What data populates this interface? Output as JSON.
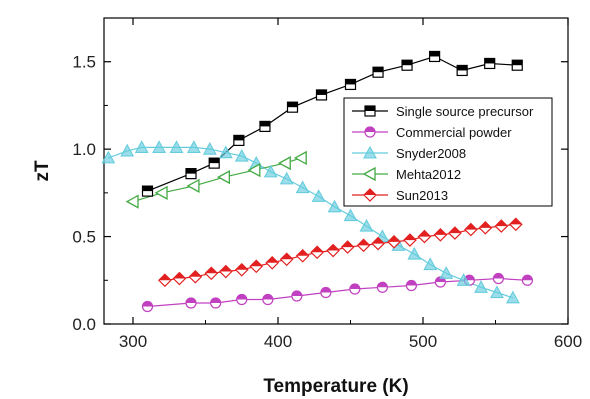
{
  "chart_data": {
    "type": "line",
    "xlabel": "Temperature (K)",
    "ylabel": "zT",
    "xlim": [
      280,
      600
    ],
    "ylim": [
      0,
      1.75
    ],
    "xticks": [
      300,
      400,
      500,
      600
    ],
    "yticks": [
      0.0,
      0.5,
      1.0,
      1.5
    ],
    "ytick_labels": [
      "0.0",
      "0.5",
      "1.0",
      "1.5"
    ],
    "legend_position": "right",
    "series": [
      {
        "name": "Single source precursor",
        "color": "#000000",
        "marker": "square-half",
        "x": [
          310,
          340,
          356,
          373,
          391,
          410,
          430,
          450,
          469,
          489,
          508,
          527,
          546,
          565
        ],
        "y": [
          0.76,
          0.86,
          0.92,
          1.05,
          1.13,
          1.24,
          1.31,
          1.37,
          1.44,
          1.48,
          1.53,
          1.45,
          1.49,
          1.48
        ]
      },
      {
        "name": "Commercial powder",
        "color": "#c040c0",
        "marker": "circle-half",
        "x": [
          310,
          340,
          357,
          375,
          393,
          413,
          433,
          453,
          472,
          492,
          512,
          532,
          552,
          572
        ],
        "y": [
          0.1,
          0.12,
          0.12,
          0.14,
          0.14,
          0.16,
          0.18,
          0.2,
          0.21,
          0.22,
          0.24,
          0.25,
          0.26,
          0.25
        ]
      },
      {
        "name": "Snyder2008",
        "color": "#66ccdd",
        "marker": "triangle-up",
        "x": [
          283,
          296,
          306,
          318,
          330,
          342,
          353,
          364,
          375,
          385,
          395,
          406,
          417,
          428,
          439,
          450,
          461,
          472,
          483,
          494,
          505,
          516,
          528,
          540,
          551,
          562
        ],
        "y": [
          0.95,
          0.99,
          1.01,
          1.01,
          1.01,
          1.01,
          1.0,
          0.98,
          0.96,
          0.92,
          0.87,
          0.83,
          0.78,
          0.73,
          0.67,
          0.62,
          0.56,
          0.5,
          0.45,
          0.4,
          0.34,
          0.29,
          0.25,
          0.21,
          0.18,
          0.15
        ]
      },
      {
        "name": "Mehta2012",
        "color": "#44aa44",
        "marker": "triangle-left",
        "x": [
          300,
          320,
          342,
          363,
          384,
          405,
          416
        ],
        "y": [
          0.7,
          0.75,
          0.79,
          0.84,
          0.88,
          0.92,
          0.95
        ]
      },
      {
        "name": "Sun2013",
        "color": "#e32020",
        "marker": "diamond-half",
        "x": [
          322,
          332,
          343,
          354,
          364,
          375,
          385,
          396,
          406,
          417,
          427,
          438,
          448,
          459,
          469,
          480,
          491,
          501,
          512,
          522,
          533,
          543,
          554,
          564
        ],
        "y": [
          0.25,
          0.26,
          0.27,
          0.29,
          0.3,
          0.31,
          0.33,
          0.35,
          0.37,
          0.39,
          0.41,
          0.42,
          0.44,
          0.45,
          0.46,
          0.47,
          0.48,
          0.5,
          0.51,
          0.52,
          0.54,
          0.55,
          0.56,
          0.57
        ]
      }
    ]
  }
}
